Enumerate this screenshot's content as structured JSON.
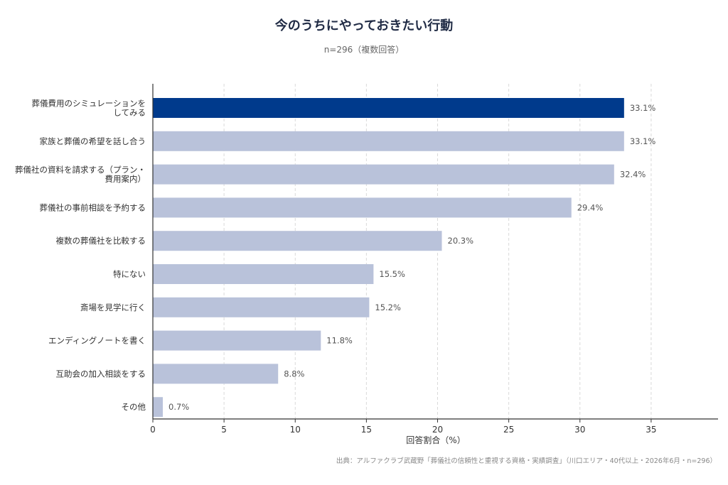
{
  "chart_data": {
    "type": "bar",
    "orientation": "horizontal",
    "title": "今のうちにやっておきたい行動",
    "subtitle": "n=296（複数回答）",
    "xlabel": "回答割合（%）",
    "xlim": [
      0,
      39.7
    ],
    "xticks": [
      0,
      5,
      10,
      15,
      20,
      25,
      30,
      35
    ],
    "grid": "vertical dashed",
    "value_suffix": "%",
    "categories": [
      [
        "葬儀費用のシミュレーションを",
        "してみる"
      ],
      [
        "家族と葬儀の希望を話し合う"
      ],
      [
        "葬儀社の資料を請求する（プラン・",
        "費用案内）"
      ],
      [
        "葬儀社の事前相談を予約する"
      ],
      [
        "複数の葬儀社を比較する"
      ],
      [
        "特にない"
      ],
      [
        "斎場を見学に行く"
      ],
      [
        "エンディングノートを書く"
      ],
      [
        "互助会の加入相談をする"
      ],
      [
        "その他"
      ]
    ],
    "values": [
      33.1,
      33.1,
      32.4,
      29.4,
      20.3,
      15.5,
      15.2,
      11.8,
      8.8,
      0.7
    ],
    "colors": {
      "highlight": "#003a8c",
      "default": "#b9c2da",
      "axis": "#333333",
      "grid": "#d9d9d9"
    },
    "highlight_index": 0,
    "source": "出典：アルファクラブ武蔵野「葬儀社の信頼性と重視する資格・実績調査」（川口エリア・40代以上・2026年6月・n=296）"
  }
}
